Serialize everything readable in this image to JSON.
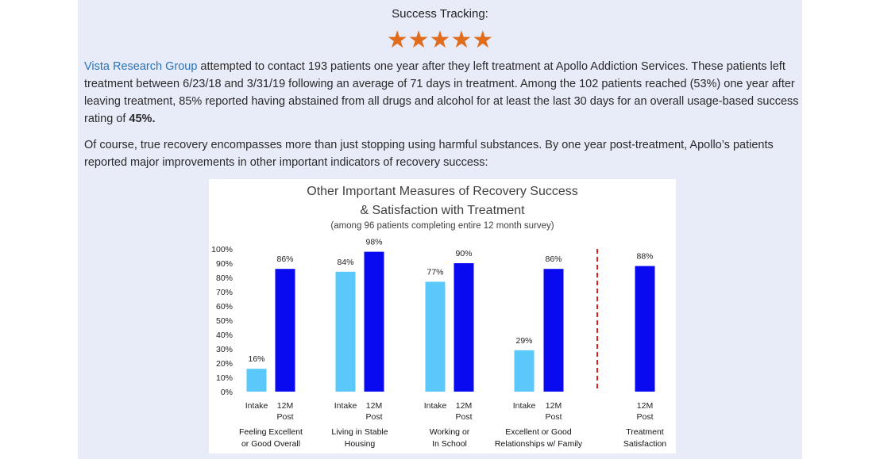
{
  "heading": "Success Tracking:",
  "stars": {
    "icon": "star-icon",
    "count": 5,
    "color": "#e06c1c"
  },
  "para1": {
    "link": "Vista Research Group",
    "text": " attempted to contact 193 patients one year after they left treatment at Apollo Addiction Services.  These patients left treatment between 6/23/18 and 3/31/19 following an average of 71 days in treatment.  Among the 102 patients reached (53%) one year after leaving treatment, 85% reported having abstained from all drugs and alcohol for at least the last 30 days for an overall usage-based success rating of ",
    "bold": "45%."
  },
  "para2": "Of course, true recovery encompasses more than just stopping using harmful substances. By one year post-treatment, Apollo’s patients reported major improvements in other important indicators of recovery success:",
  "chart_data": {
    "type": "bar",
    "title_lines": [
      "Other Important Measures of Recovery Success",
      "& Satisfaction with Treatment"
    ],
    "subtitle": "(among 96 patients completing entire 12 month survey)",
    "ylim": [
      0,
      100
    ],
    "yticks": [
      "0%",
      "10%",
      "20%",
      "30%",
      "40%",
      "50%",
      "60%",
      "70%",
      "80%",
      "90%",
      "100%"
    ],
    "colors": {
      "intake": "#5bc8fb",
      "post": "#0a0af0",
      "divider": "#e02020"
    },
    "groups": [
      {
        "label": [
          "Feeling Excellent",
          "or Good Overall"
        ],
        "bars": [
          {
            "sub": [
              "Intake"
            ],
            "value": 16,
            "value_label": "16%",
            "kind": "intake"
          },
          {
            "sub": [
              "12M",
              "Post"
            ],
            "value": 86,
            "value_label": "86%",
            "kind": "post"
          }
        ]
      },
      {
        "label": [
          "Living in Stable",
          "Housing"
        ],
        "bars": [
          {
            "sub": [
              "Intake"
            ],
            "value": 84,
            "value_label": "84%",
            "kind": "intake"
          },
          {
            "sub": [
              "12M",
              "Post"
            ],
            "value": 98,
            "value_label": "98%",
            "kind": "post"
          }
        ]
      },
      {
        "label": [
          "Working or",
          "In School"
        ],
        "bars": [
          {
            "sub": [
              "Intake"
            ],
            "value": 77,
            "value_label": "77%",
            "kind": "intake"
          },
          {
            "sub": [
              "12M",
              "Post"
            ],
            "value": 90,
            "value_label": "90%",
            "kind": "post"
          }
        ]
      },
      {
        "label": [
          "Excellent or Good",
          "Relationships w/ Family"
        ],
        "bars": [
          {
            "sub": [
              "Intake"
            ],
            "value": 29,
            "value_label": "29%",
            "kind": "intake"
          },
          {
            "sub": [
              "12M",
              "Post"
            ],
            "value": 86,
            "value_label": "86%",
            "kind": "post"
          }
        ]
      },
      {
        "label": [
          "Treatment",
          "Satisfaction"
        ],
        "bars": [
          {
            "sub": [
              "12M",
              "Post"
            ],
            "value": 88,
            "value_label": "88%",
            "kind": "post"
          }
        ]
      }
    ]
  }
}
